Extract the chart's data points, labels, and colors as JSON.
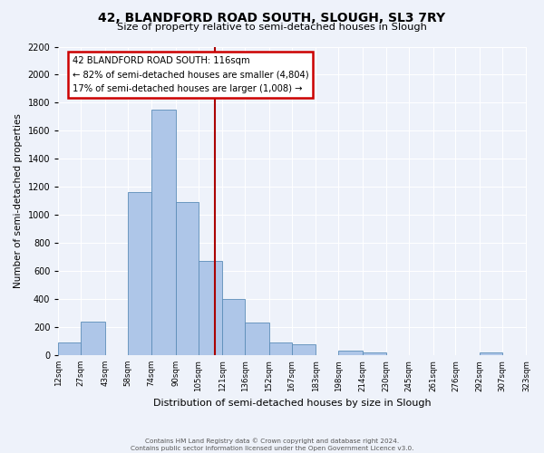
{
  "title": "42, BLANDFORD ROAD SOUTH, SLOUGH, SL3 7RY",
  "subtitle": "Size of property relative to semi-detached houses in Slough",
  "xlabel": "Distribution of semi-detached houses by size in Slough",
  "ylabel": "Number of semi-detached properties",
  "bar_color": "#aec6e8",
  "bar_edgecolor": "#5b8db8",
  "background_color": "#eef2fa",
  "bin_labels": [
    "12sqm",
    "27sqm",
    "43sqm",
    "58sqm",
    "74sqm",
    "90sqm",
    "105sqm",
    "121sqm",
    "136sqm",
    "152sqm",
    "167sqm",
    "183sqm",
    "198sqm",
    "214sqm",
    "230sqm",
    "245sqm",
    "261sqm",
    "276sqm",
    "292sqm",
    "307sqm",
    "323sqm"
  ],
  "bin_edges": [
    12,
    27,
    43,
    58,
    74,
    90,
    105,
    121,
    136,
    152,
    167,
    183,
    198,
    214,
    230,
    245,
    261,
    276,
    292,
    307,
    323
  ],
  "heights": [
    90,
    240,
    0,
    1160,
    1750,
    1090,
    670,
    400,
    230,
    90,
    80,
    0,
    35,
    20,
    0,
    0,
    0,
    0,
    20,
    0
  ],
  "vline_x": 116,
  "vline_color": "#aa0000",
  "annotation_title": "42 BLANDFORD ROAD SOUTH: 116sqm",
  "annotation_line1": "← 82% of semi-detached houses are smaller (4,804)",
  "annotation_line2": "17% of semi-detached houses are larger (1,008) →",
  "annotation_box_edgecolor": "#cc0000",
  "ylim": [
    0,
    2200
  ],
  "yticks": [
    0,
    200,
    400,
    600,
    800,
    1000,
    1200,
    1400,
    1600,
    1800,
    2000,
    2200
  ],
  "footer1": "Contains HM Land Registry data © Crown copyright and database right 2024.",
  "footer2": "Contains public sector information licensed under the Open Government Licence v3.0."
}
